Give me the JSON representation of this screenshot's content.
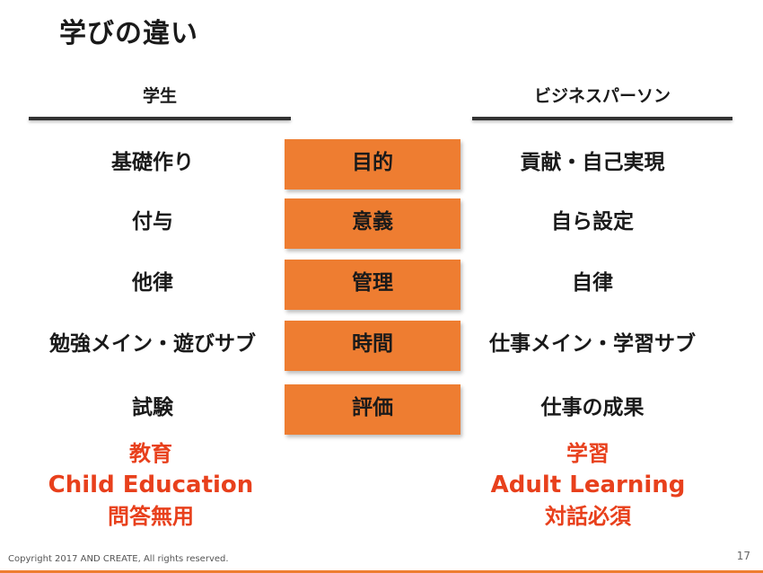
{
  "title": "学びの違い",
  "headers": {
    "left": "学生",
    "right": "ビジネスパーソン"
  },
  "rows": [
    {
      "left": "基礎作り",
      "center": "目的",
      "right": "貢献・自己実現"
    },
    {
      "left": "付与",
      "center": "意義",
      "right": "自ら設定"
    },
    {
      "left": "他律",
      "center": "管理",
      "right": "自律"
    },
    {
      "left": "勉強メイン・遊びサブ",
      "center": "時間",
      "right": "仕事メイン・学習サブ"
    },
    {
      "left": "試験",
      "center": "評価",
      "right": "仕事の成果"
    }
  ],
  "summary": {
    "left": {
      "jp": "教育",
      "en": "Child Education",
      "sub": "問答無用"
    },
    "right": {
      "jp": "学習",
      "en": "Adult Learning",
      "sub": "対話必須"
    }
  },
  "footer": {
    "copyright": "Copyright 2017 AND CREATE, All rights reserved.",
    "page_number": "17"
  },
  "colors": {
    "accent_box": "#ee7d31",
    "summary_text": "#e8401c"
  }
}
